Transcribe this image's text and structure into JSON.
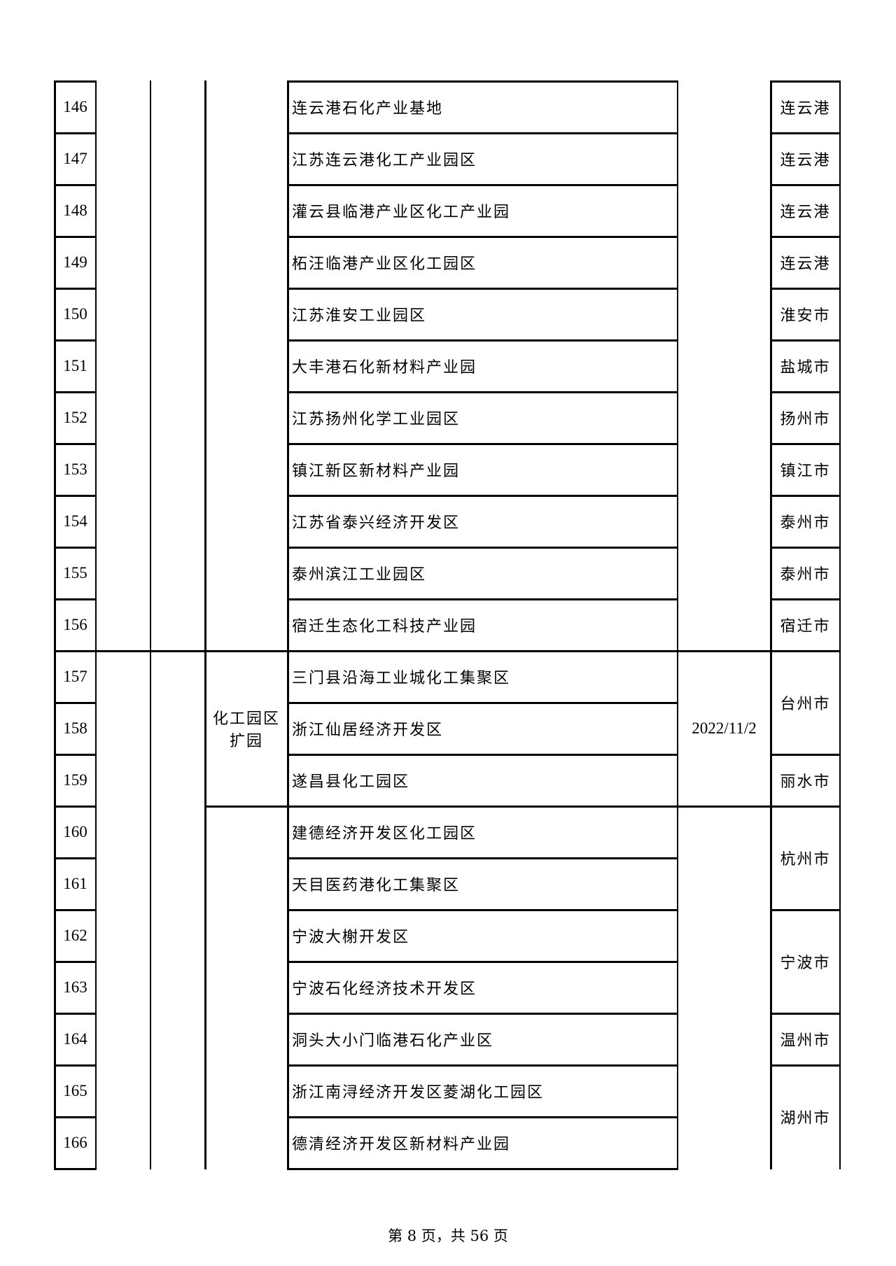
{
  "rows": [
    {
      "no": "146",
      "name": "连云港石化产业基地",
      "city": "连云港"
    },
    {
      "no": "147",
      "name": "江苏连云港化工产业园区",
      "city": "连云港"
    },
    {
      "no": "148",
      "name": "灌云县临港产业区化工产业园",
      "city": "连云港"
    },
    {
      "no": "149",
      "name": "柘汪临港产业区化工园区",
      "city": "连云港"
    },
    {
      "no": "150",
      "name": "江苏淮安工业园区",
      "city": "淮安市"
    },
    {
      "no": "151",
      "name": "大丰港石化新材料产业园",
      "city": "盐城市"
    },
    {
      "no": "152",
      "name": "江苏扬州化学工业园区",
      "city": "扬州市"
    },
    {
      "no": "153",
      "name": "镇江新区新材料产业园",
      "city": "镇江市"
    },
    {
      "no": "154",
      "name": "江苏省泰兴经济开发区",
      "city": "泰州市"
    },
    {
      "no": "155",
      "name": "泰州滨江工业园区",
      "city": "泰州市"
    },
    {
      "no": "156",
      "name": "宿迁生态化工科技产业园",
      "city": "宿迁市"
    },
    {
      "no": "157",
      "name": "三门县沿海工业城化工集聚区"
    },
    {
      "no": "158",
      "name": "浙江仙居经济开发区"
    },
    {
      "no": "159",
      "name": "遂昌县化工园区",
      "city": "丽水市"
    },
    {
      "no": "160",
      "name": "建德经济开发区化工园区"
    },
    {
      "no": "161",
      "name": "天目医药港化工集聚区"
    },
    {
      "no": "162",
      "name": "宁波大榭开发区"
    },
    {
      "no": "163",
      "name": "宁波石化经济技术开发区"
    },
    {
      "no": "164",
      "name": "洞头大小门临港石化产业区",
      "city": "温州市"
    },
    {
      "no": "165",
      "name": "浙江南浔经济开发区菱湖化工园区"
    },
    {
      "no": "166",
      "name": "德清经济开发区新材料产业园"
    }
  ],
  "merged": {
    "type_157_159": "化工园区扩园",
    "date_157_159": "2022/11/2",
    "city_157_158": "台州市",
    "city_160_161": "杭州市",
    "city_162_163": "宁波市",
    "city_165_166": "湖州市"
  },
  "footer": "第 8 页，共 56 页"
}
